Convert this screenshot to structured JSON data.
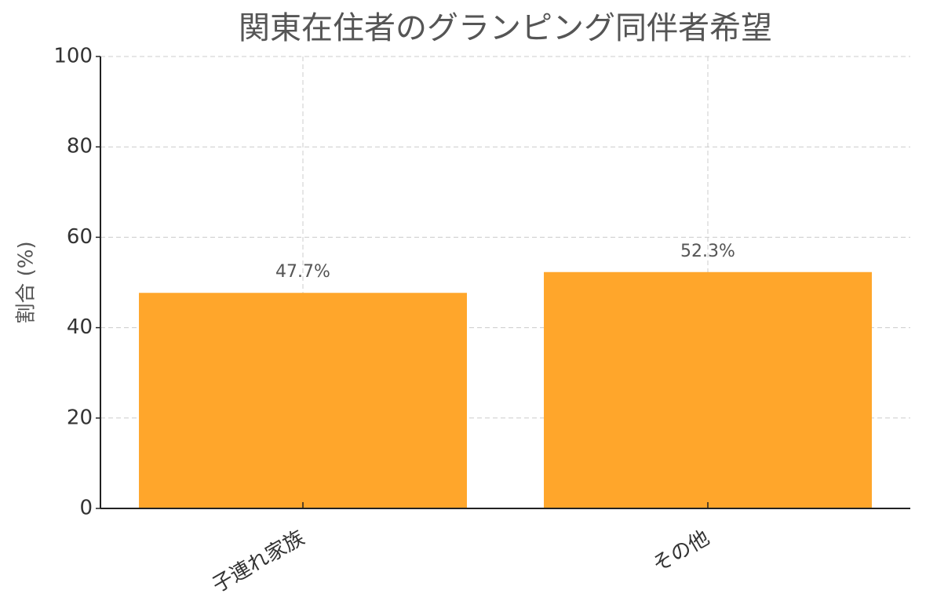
{
  "chart_data": {
    "type": "bar",
    "title": "関東在住者のグランピング同伴者希望",
    "ylabel": "割合 (%)",
    "categories": [
      "子連れ家族",
      "その他"
    ],
    "values": [
      47.7,
      52.3
    ],
    "value_labels": [
      "47.7%",
      "52.3%"
    ],
    "color": "#ffa62b",
    "ylim": [
      0,
      100
    ],
    "yticks": [
      0,
      20,
      40,
      60,
      80,
      100
    ],
    "grid": true
  }
}
